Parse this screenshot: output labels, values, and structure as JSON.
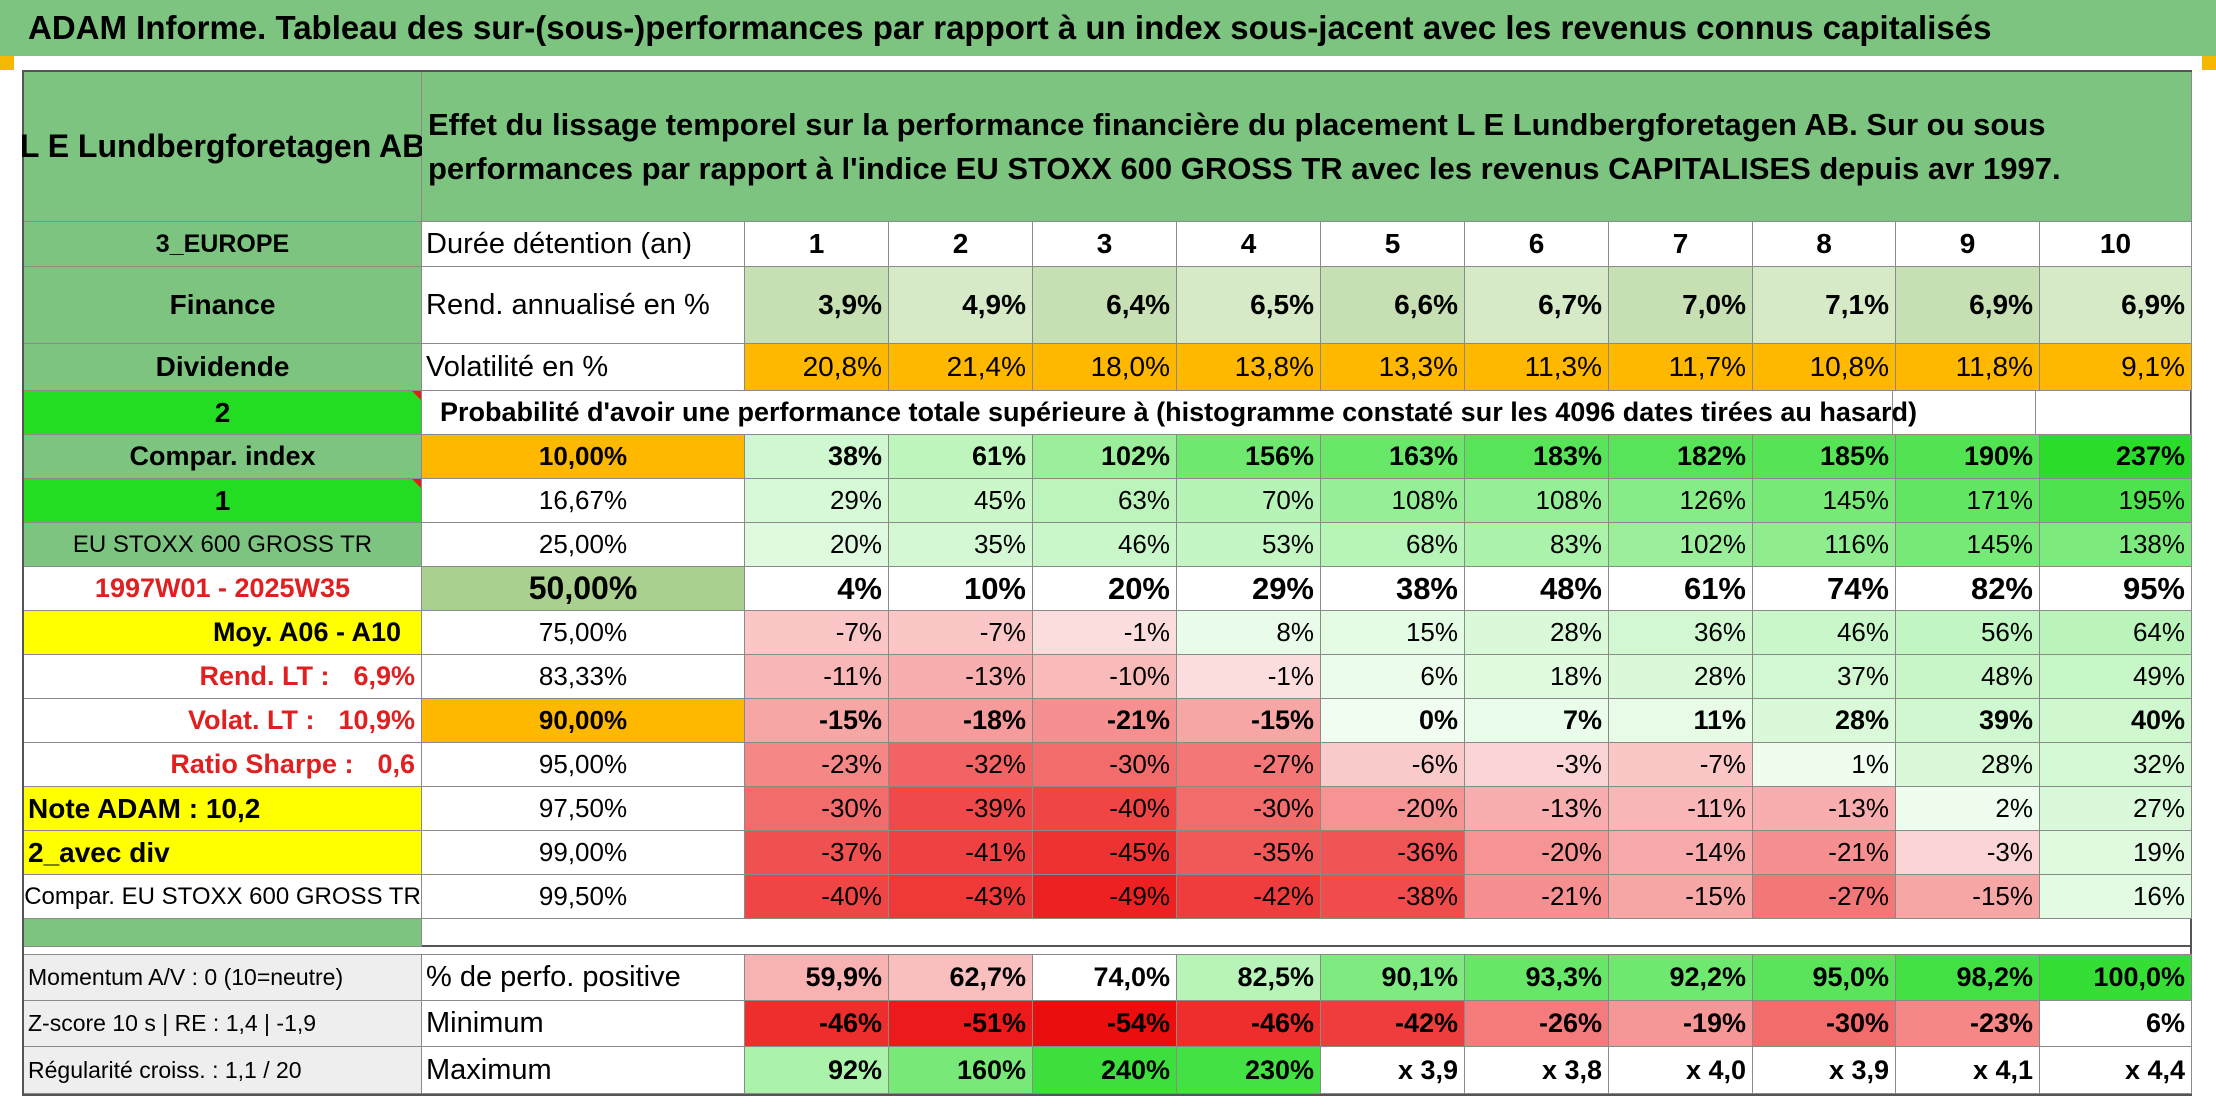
{
  "title": "ADAM Informe. Tableau des sur-(sous-)performances par rapport à un index sous-jacent avec les revenus connus capitalisés",
  "company": "L E Lundbergforetagen AB",
  "description": "Effet du lissage temporel sur la performance financière du placement L E Lundbergforetagen AB. Sur ou sous performances par rapport à l'indice EU STOXX 600 GROSS TR avec les revenus CAPITALISES depuis avr 1997.",
  "left": {
    "region": "3_EUROPE",
    "sector": "Finance",
    "type": "Dividende",
    "two": "2",
    "compar_index": "Compar. index",
    "one": "1",
    "index_name": "EU STOXX 600 GROSS TR",
    "period": "1997W01 - 2025W35",
    "moy": "Moy. A06 - A10",
    "rend_lt_label": "Rend. LT :",
    "rend_lt_value": "6,9%",
    "volat_lt_label": "Volat. LT :",
    "volat_lt_value": "10,9%",
    "sharpe_label": "Ratio Sharpe :",
    "sharpe_value": "0,6",
    "note": "Note ADAM : 10,2",
    "avec_div": "2_avec div",
    "compar_full": "Compar. EU STOXX 600 GROSS TR",
    "momentum": "Momentum A/V : 0 (10=neutre)",
    "zscore": "Z-score 10 s | RE : 1,4 | -1,9",
    "regularite": "Régularité croiss. : 1,1 / 20"
  },
  "header_labels": {
    "duree": "Durée détention (an)",
    "rend": "Rend. annualisé en %",
    "vol": "Volatilité en %",
    "proba": "Probabilité d'avoir une performance totale supérieure à (histogramme constaté sur les 4096 dates tirées au hasard)"
  },
  "years": [
    "1",
    "2",
    "3",
    "4",
    "5",
    "6",
    "7",
    "8",
    "9",
    "10"
  ],
  "rendement": [
    "3,9%",
    "4,9%",
    "6,4%",
    "6,5%",
    "6,6%",
    "6,7%",
    "7,0%",
    "7,1%",
    "6,9%",
    "6,9%"
  ],
  "volatilite": [
    "20,8%",
    "21,4%",
    "18,0%",
    "13,8%",
    "13,3%",
    "11,3%",
    "11,7%",
    "10,8%",
    "11,8%",
    "9,1%"
  ],
  "prob_rows": [
    {
      "p": "10,00%",
      "v": [
        "38%",
        "61%",
        "102%",
        "156%",
        "163%",
        "183%",
        "182%",
        "185%",
        "190%",
        "237%"
      ]
    },
    {
      "p": "16,67%",
      "v": [
        "29%",
        "45%",
        "63%",
        "70%",
        "108%",
        "108%",
        "126%",
        "145%",
        "171%",
        "195%"
      ]
    },
    {
      "p": "25,00%",
      "v": [
        "20%",
        "35%",
        "46%",
        "53%",
        "68%",
        "83%",
        "102%",
        "116%",
        "145%",
        "138%"
      ]
    },
    {
      "p": "50,00%",
      "v": [
        "4%",
        "10%",
        "20%",
        "29%",
        "38%",
        "48%",
        "61%",
        "74%",
        "82%",
        "95%"
      ]
    },
    {
      "p": "75,00%",
      "v": [
        "-7%",
        "-7%",
        "-1%",
        "8%",
        "15%",
        "28%",
        "36%",
        "46%",
        "56%",
        "64%"
      ]
    },
    {
      "p": "83,33%",
      "v": [
        "-11%",
        "-13%",
        "-10%",
        "-1%",
        "6%",
        "18%",
        "28%",
        "37%",
        "48%",
        "49%"
      ]
    },
    {
      "p": "90,00%",
      "v": [
        "-15%",
        "-18%",
        "-21%",
        "-15%",
        "0%",
        "7%",
        "11%",
        "28%",
        "39%",
        "40%"
      ]
    },
    {
      "p": "95,00%",
      "v": [
        "-23%",
        "-32%",
        "-30%",
        "-27%",
        "-6%",
        "-3%",
        "-7%",
        "1%",
        "28%",
        "32%"
      ]
    },
    {
      "p": "97,50%",
      "v": [
        "-30%",
        "-39%",
        "-40%",
        "-30%",
        "-20%",
        "-13%",
        "-11%",
        "-13%",
        "2%",
        "27%"
      ]
    },
    {
      "p": "99,00%",
      "v": [
        "-37%",
        "-41%",
        "-45%",
        "-35%",
        "-36%",
        "-20%",
        "-14%",
        "-21%",
        "-3%",
        "19%"
      ]
    },
    {
      "p": "99,50%",
      "v": [
        "-40%",
        "-43%",
        "-49%",
        "-42%",
        "-38%",
        "-21%",
        "-15%",
        "-27%",
        "-15%",
        "16%"
      ]
    }
  ],
  "bottom": {
    "pos_label": "% de perfo. positive",
    "pos": [
      "59,9%",
      "62,7%",
      "74,0%",
      "82,5%",
      "90,1%",
      "93,3%",
      "92,2%",
      "95,0%",
      "98,2%",
      "100,0%"
    ],
    "min_label": "Minimum",
    "min": [
      "-46%",
      "-51%",
      "-54%",
      "-46%",
      "-42%",
      "-26%",
      "-19%",
      "-30%",
      "-23%",
      "6%"
    ],
    "max_label": "Maximum",
    "max": [
      "92%",
      "160%",
      "240%",
      "230%",
      "x 3,9",
      "x 3,8",
      "x 4,0",
      "x 3,9",
      "x 4,1",
      "x 4,4"
    ]
  },
  "colors": {
    "green_header": "#7cc47f",
    "bright_green": "#22dd22",
    "yellow": "#ffff00",
    "orange": "#ffb800",
    "rend_bg": "#c6e0b4",
    "text_red": "#e02020"
  }
}
